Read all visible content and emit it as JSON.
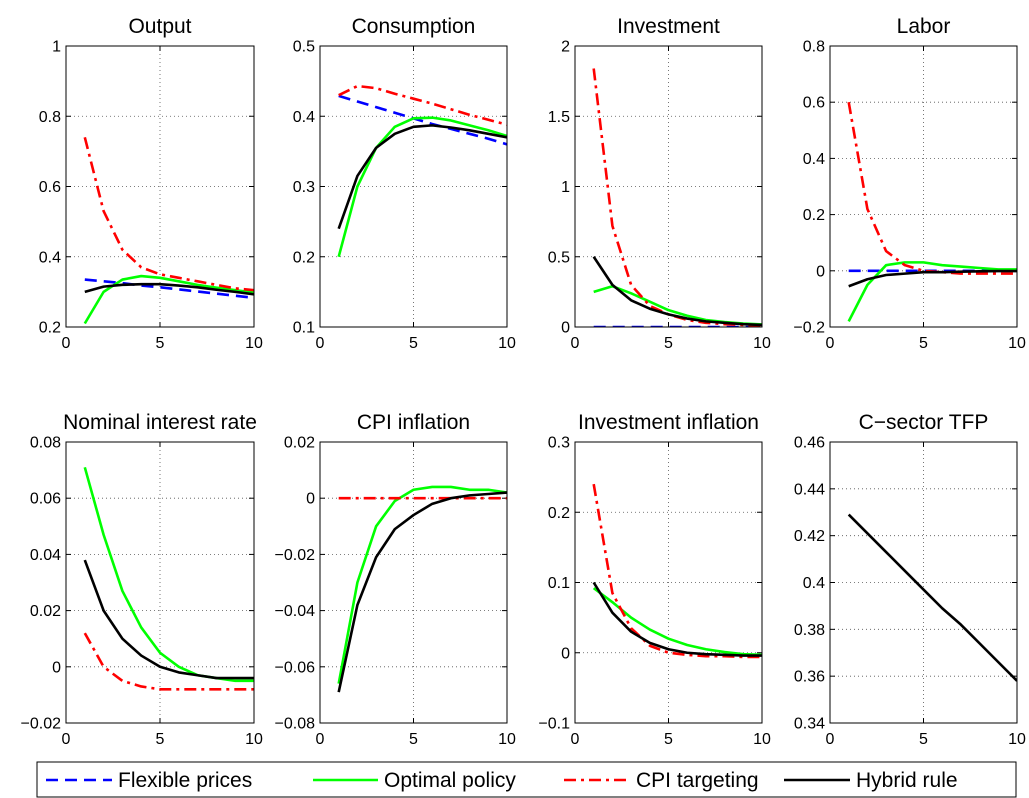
{
  "chart_data": [
    {
      "type": "line",
      "title": "Output",
      "xlim": [
        0,
        10
      ],
      "ylim": [
        0.2,
        1
      ],
      "xticks": [
        "0",
        "5",
        "10"
      ],
      "yticks": [
        "0.2",
        "0.4",
        "0.6",
        "0.8",
        "1"
      ],
      "grid": true,
      "x": [
        1,
        2,
        3,
        4,
        5,
        6,
        7,
        8,
        9,
        10
      ],
      "series": [
        {
          "key": "flex",
          "values": [
            0.335,
            0.33,
            0.325,
            0.318,
            0.313,
            0.307,
            0.301,
            0.295,
            0.289,
            0.283
          ]
        },
        {
          "key": "opt",
          "values": [
            0.21,
            0.3,
            0.335,
            0.345,
            0.34,
            0.33,
            0.32,
            0.312,
            0.305,
            0.298
          ]
        },
        {
          "key": "cpi",
          "values": [
            0.74,
            0.53,
            0.42,
            0.37,
            0.35,
            0.34,
            0.33,
            0.32,
            0.31,
            0.305
          ]
        },
        {
          "key": "hyb",
          "values": [
            0.3,
            0.315,
            0.32,
            0.322,
            0.322,
            0.318,
            0.313,
            0.306,
            0.3,
            0.293
          ]
        }
      ]
    },
    {
      "type": "line",
      "title": "Consumption",
      "xlim": [
        0,
        10
      ],
      "ylim": [
        0.1,
        0.5
      ],
      "xticks": [
        "0",
        "5",
        "10"
      ],
      "yticks": [
        "0.1",
        "0.2",
        "0.3",
        "0.4",
        "0.5"
      ],
      "grid": true,
      "x": [
        1,
        2,
        3,
        4,
        5,
        6,
        7,
        8,
        9,
        10
      ],
      "series": [
        {
          "key": "flex",
          "values": [
            0.429,
            0.421,
            0.413,
            0.405,
            0.397,
            0.389,
            0.382,
            0.375,
            0.368,
            0.36
          ]
        },
        {
          "key": "opt",
          "values": [
            0.2,
            0.3,
            0.355,
            0.385,
            0.397,
            0.398,
            0.394,
            0.387,
            0.38,
            0.372
          ]
        },
        {
          "key": "cpi",
          "values": [
            0.43,
            0.443,
            0.44,
            0.432,
            0.425,
            0.418,
            0.41,
            0.402,
            0.395,
            0.388
          ]
        },
        {
          "key": "hyb",
          "values": [
            0.24,
            0.315,
            0.355,
            0.375,
            0.385,
            0.387,
            0.384,
            0.38,
            0.375,
            0.37
          ]
        }
      ]
    },
    {
      "type": "line",
      "title": "Investment",
      "xlim": [
        0,
        10
      ],
      "ylim": [
        0,
        2
      ],
      "xticks": [
        "0",
        "5",
        "10"
      ],
      "yticks": [
        "0",
        "0.5",
        "1",
        "1.5",
        "2"
      ],
      "grid": true,
      "x": [
        1,
        2,
        3,
        4,
        5,
        6,
        7,
        8,
        9,
        10
      ],
      "series": [
        {
          "key": "flex",
          "values": [
            0,
            0,
            0,
            0,
            0,
            0,
            0,
            0,
            0,
            0
          ]
        },
        {
          "key": "opt",
          "values": [
            0.25,
            0.29,
            0.24,
            0.18,
            0.12,
            0.08,
            0.05,
            0.035,
            0.025,
            0.018
          ]
        },
        {
          "key": "cpi",
          "values": [
            1.84,
            0.72,
            0.3,
            0.15,
            0.09,
            0.05,
            0.03,
            0.02,
            0.015,
            0.01
          ]
        },
        {
          "key": "hyb",
          "values": [
            0.5,
            0.3,
            0.19,
            0.13,
            0.09,
            0.06,
            0.04,
            0.03,
            0.02,
            0.015
          ]
        }
      ]
    },
    {
      "type": "line",
      "title": "Labor",
      "xlim": [
        0,
        10
      ],
      "ylim": [
        -0.2,
        0.8
      ],
      "xticks": [
        "0",
        "5",
        "10"
      ],
      "yticks": [
        "−0.2",
        "0",
        "0.2",
        "0.4",
        "0.6",
        "0.8"
      ],
      "grid": true,
      "x": [
        1,
        2,
        3,
        4,
        5,
        6,
        7,
        8,
        9,
        10
      ],
      "series": [
        {
          "key": "flex",
          "values": [
            0,
            0,
            0,
            0,
            0,
            0,
            0,
            0,
            0,
            0
          ]
        },
        {
          "key": "opt",
          "values": [
            -0.18,
            -0.05,
            0.02,
            0.03,
            0.03,
            0.02,
            0.015,
            0.01,
            0.005,
            0.005
          ]
        },
        {
          "key": "cpi",
          "values": [
            0.6,
            0.22,
            0.07,
            0.02,
            0.0,
            -0.005,
            -0.01,
            -0.01,
            -0.01,
            -0.01
          ]
        },
        {
          "key": "hyb",
          "values": [
            -0.055,
            -0.03,
            -0.015,
            -0.01,
            -0.005,
            -0.005,
            -0.003,
            -0.002,
            -0.001,
            -0.001
          ]
        }
      ]
    },
    {
      "type": "line",
      "title": "Nominal interest rate",
      "xlim": [
        0,
        10
      ],
      "ylim": [
        -0.02,
        0.08
      ],
      "xticks": [
        "0",
        "5",
        "10"
      ],
      "yticks": [
        "−0.02",
        "0",
        "0.02",
        "0.04",
        "0.06",
        "0.08"
      ],
      "grid": true,
      "x": [
        1,
        2,
        3,
        4,
        5,
        6,
        7,
        8,
        9,
        10
      ],
      "series": [
        {
          "key": "opt",
          "values": [
            0.071,
            0.047,
            0.027,
            0.014,
            0.005,
            0.0,
            -0.003,
            -0.004,
            -0.005,
            -0.005
          ]
        },
        {
          "key": "cpi",
          "values": [
            0.012,
            0.0,
            -0.005,
            -0.007,
            -0.008,
            -0.008,
            -0.008,
            -0.008,
            -0.008,
            -0.008
          ]
        },
        {
          "key": "hyb",
          "values": [
            0.038,
            0.02,
            0.01,
            0.004,
            0.0,
            -0.002,
            -0.003,
            -0.004,
            -0.004,
            -0.004
          ]
        }
      ]
    },
    {
      "type": "line",
      "title": "CPI inflation",
      "xlim": [
        0,
        10
      ],
      "ylim": [
        -0.08,
        0.02
      ],
      "xticks": [
        "0",
        "5",
        "10"
      ],
      "yticks": [
        "−0.08",
        "−0.06",
        "−0.04",
        "−0.02",
        "0",
        "0.02"
      ],
      "grid": true,
      "x": [
        1,
        2,
        3,
        4,
        5,
        6,
        7,
        8,
        9,
        10
      ],
      "series": [
        {
          "key": "opt",
          "values": [
            -0.066,
            -0.03,
            -0.01,
            -0.001,
            0.003,
            0.004,
            0.004,
            0.003,
            0.003,
            0.002
          ]
        },
        {
          "key": "cpi",
          "values": [
            0,
            0,
            0,
            0,
            0,
            0,
            0,
            0,
            0,
            0
          ]
        },
        {
          "key": "hyb",
          "values": [
            -0.069,
            -0.038,
            -0.021,
            -0.011,
            -0.006,
            -0.002,
            0.0,
            0.001,
            0.0015,
            0.002
          ]
        }
      ]
    },
    {
      "type": "line",
      "title": "Investment inflation",
      "xlim": [
        0,
        10
      ],
      "ylim": [
        -0.1,
        0.3
      ],
      "xticks": [
        "0",
        "5",
        "10"
      ],
      "yticks": [
        "−0.1",
        "0",
        "0.1",
        "0.2",
        "0.3"
      ],
      "grid": true,
      "x": [
        1,
        2,
        3,
        4,
        5,
        6,
        7,
        8,
        9,
        10
      ],
      "series": [
        {
          "key": "opt",
          "values": [
            0.092,
            0.072,
            0.05,
            0.033,
            0.02,
            0.011,
            0.005,
            0.001,
            -0.002,
            -0.003
          ]
        },
        {
          "key": "cpi",
          "values": [
            0.24,
            0.085,
            0.035,
            0.01,
            0.0,
            -0.003,
            -0.005,
            -0.005,
            -0.006,
            -0.006
          ]
        },
        {
          "key": "hyb",
          "values": [
            0.1,
            0.057,
            0.03,
            0.014,
            0.005,
            0.0,
            -0.002,
            -0.003,
            -0.004,
            -0.004
          ]
        }
      ]
    },
    {
      "type": "line",
      "title": "C−sector TFP",
      "xlim": [
        0,
        10
      ],
      "ylim": [
        0.34,
        0.46
      ],
      "xticks": [
        "0",
        "5",
        "10"
      ],
      "yticks": [
        "0.34",
        "0.36",
        "0.38",
        "0.4",
        "0.42",
        "0.44",
        "0.46"
      ],
      "grid": true,
      "x": [
        1,
        2,
        3,
        4,
        5,
        6,
        7,
        8,
        9,
        10
      ],
      "series": [
        {
          "key": "hyb",
          "values": [
            0.429,
            0.421,
            0.413,
            0.405,
            0.397,
            0.389,
            0.382,
            0.374,
            0.366,
            0.358
          ]
        }
      ]
    }
  ],
  "legend": {
    "position": "bottom",
    "entries": [
      {
        "key": "flex",
        "label": "Flexible prices",
        "color": "#0000ff",
        "style": "dashed"
      },
      {
        "key": "opt",
        "label": "Optimal policy",
        "color": "#00ff00",
        "style": "solid"
      },
      {
        "key": "cpi",
        "label": "CPI targeting",
        "color": "#ff0000",
        "style": "dashdot"
      },
      {
        "key": "hyb",
        "label": "Hybrid rule",
        "color": "#000000",
        "style": "solid"
      }
    ]
  }
}
